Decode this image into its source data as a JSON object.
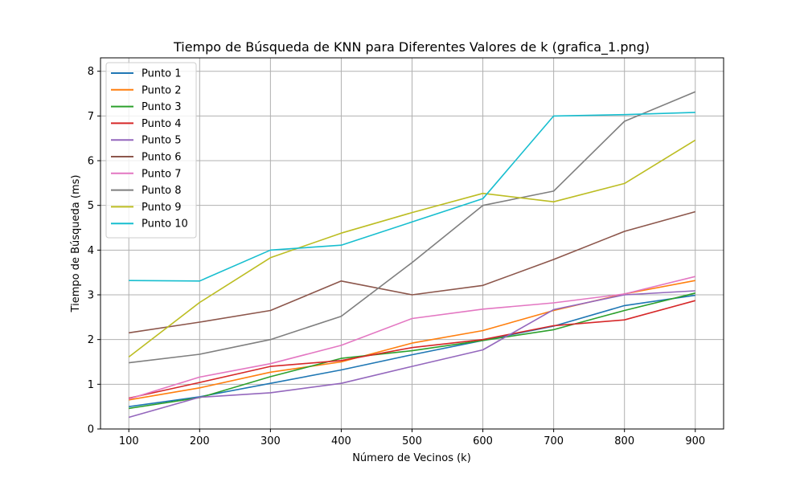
{
  "chart_data": {
    "type": "line",
    "title": "Tiempo de Búsqueda de KNN para Diferentes Valores de k (grafica_1.png)",
    "xlabel": "Número de Vecinos (k)",
    "ylabel": "Tiempo de Búsqueda (ms)",
    "x": [
      100,
      200,
      300,
      400,
      500,
      600,
      700,
      800,
      900
    ],
    "xticks": [
      "100",
      "200",
      "300",
      "400",
      "500",
      "600",
      "700",
      "800",
      "900"
    ],
    "yticks": [
      "0",
      "1",
      "2",
      "3",
      "4",
      "5",
      "6",
      "7",
      "8"
    ],
    "xlim": [
      60,
      940
    ],
    "ylim": [
      0,
      8.3
    ],
    "grid": true,
    "legend_position": "top-left",
    "series": [
      {
        "name": "Punto 1",
        "color": "#1f77b4",
        "values": [
          0.5,
          0.72,
          1.02,
          1.32,
          1.66,
          1.98,
          2.3,
          2.76,
          2.99
        ]
      },
      {
        "name": "Punto 2",
        "color": "#ff7f0e",
        "values": [
          0.65,
          0.92,
          1.27,
          1.5,
          1.92,
          2.2,
          2.65,
          3.02,
          3.32
        ]
      },
      {
        "name": "Punto 3",
        "color": "#2ca02c",
        "values": [
          0.46,
          0.7,
          1.17,
          1.58,
          1.75,
          1.98,
          2.22,
          2.65,
          3.04
        ]
      },
      {
        "name": "Punto 4",
        "color": "#d62728",
        "values": [
          0.69,
          1.04,
          1.4,
          1.53,
          1.82,
          2.0,
          2.31,
          2.44,
          2.87
        ]
      },
      {
        "name": "Punto 5",
        "color": "#9467bd",
        "values": [
          0.26,
          0.71,
          0.81,
          1.02,
          1.4,
          1.77,
          2.67,
          3.0,
          3.09
        ]
      },
      {
        "name": "Punto 6",
        "color": "#8c564b",
        "values": [
          2.15,
          2.39,
          2.65,
          3.31,
          3.0,
          3.21,
          3.79,
          4.42,
          4.86
        ]
      },
      {
        "name": "Punto 7",
        "color": "#e377c2",
        "values": [
          0.67,
          1.16,
          1.46,
          1.87,
          2.47,
          2.68,
          2.82,
          3.02,
          3.41
        ]
      },
      {
        "name": "Punto 8",
        "color": "#7f7f7f",
        "values": [
          1.48,
          1.67,
          2.0,
          2.52,
          3.72,
          5.0,
          5.32,
          6.88,
          7.54
        ]
      },
      {
        "name": "Punto 9",
        "color": "#bcbd22",
        "values": [
          1.61,
          2.83,
          3.83,
          4.38,
          4.84,
          5.27,
          5.08,
          5.49,
          6.46
        ]
      },
      {
        "name": "Punto 10",
        "color": "#17becf",
        "values": [
          3.32,
          3.31,
          4.0,
          4.11,
          4.63,
          5.15,
          7.0,
          7.03,
          7.08
        ]
      }
    ]
  }
}
